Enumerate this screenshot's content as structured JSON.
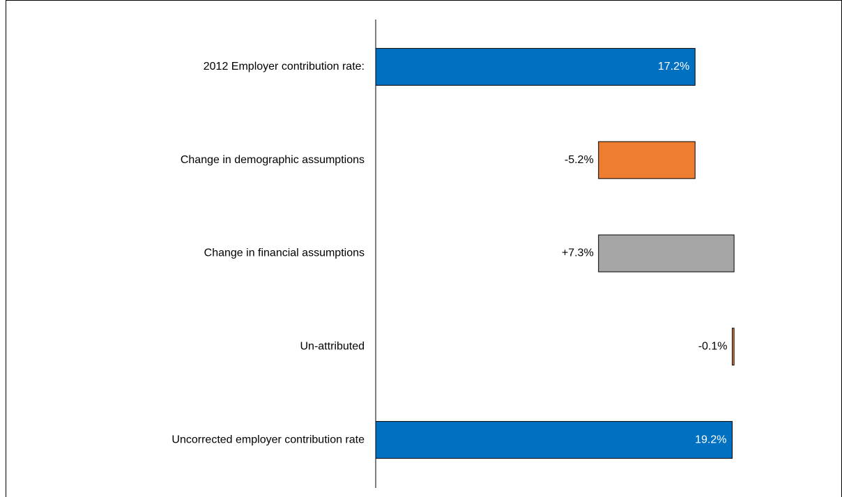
{
  "chart_data": {
    "type": "waterfall",
    "orientation": "horizontal",
    "categories": [
      "2012 Employer contribution rate:",
      "Change in demographic assumptions",
      "Change in financial assumptions ",
      "Un-attributed",
      "Uncorrected employer contribution rate"
    ],
    "values": [
      17.2,
      -5.2,
      7.3,
      -0.1,
      19.2
    ],
    "value_labels": [
      "17.2%",
      "-5.2%",
      "+7.3%",
      "-0.1%",
      "19.2%"
    ],
    "measure": [
      "absolute",
      "relative",
      "relative",
      "relative",
      "total"
    ],
    "colors": [
      "#0070c0",
      "#ed7d31",
      "#a5a5a5",
      "#ed7d31",
      "#0070c0"
    ],
    "xlim": [
      0,
      25
    ]
  }
}
